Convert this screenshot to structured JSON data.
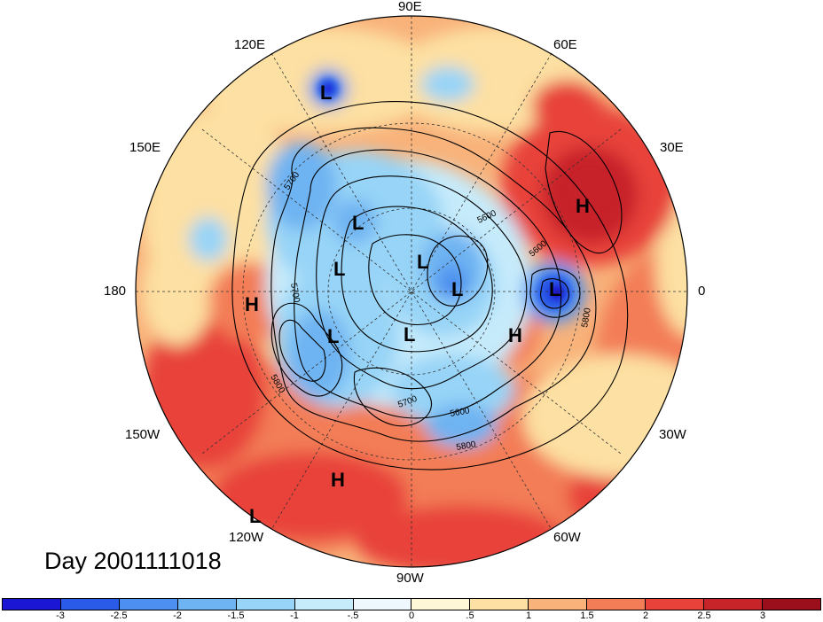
{
  "map": {
    "projection": "north-polar-stereographic",
    "day_label": "Day 2001111018",
    "longitude_labels": {
      "top": "90E",
      "upper_left": "120E",
      "upper_right": "60E",
      "left_upper": "150E",
      "right_upper": "30E",
      "left": "180",
      "right": "0",
      "left_lower": "150W",
      "right_lower": "30W",
      "lower_left": "120W",
      "lower_right": "60W",
      "bottom": "90W"
    },
    "pressure_centers": [
      {
        "label": "L",
        "region": "east-siberia"
      },
      {
        "label": "L",
        "region": "arctic-ocean"
      },
      {
        "label": "L",
        "region": "beaufort-sea"
      },
      {
        "label": "L",
        "region": "north-pole"
      },
      {
        "label": "L",
        "region": "greenland"
      },
      {
        "label": "L",
        "region": "norwegian-sea"
      },
      {
        "label": "L",
        "region": "alaska"
      },
      {
        "label": "L",
        "region": "hudson-bay"
      },
      {
        "label": "L",
        "region": "north-pacific-edge"
      },
      {
        "label": "H",
        "region": "russia"
      },
      {
        "label": "H",
        "region": "north-atlantic"
      },
      {
        "label": "H",
        "region": "dateline"
      },
      {
        "label": "H",
        "region": "eastern-pacific"
      }
    ],
    "contour_labels": [
      "5700",
      "5600",
      "5700",
      "5800",
      "5800",
      "5600",
      "5700",
      "5800",
      "5600"
    ]
  },
  "colorbar": {
    "tick_labels": [
      "-3",
      "-2.5",
      "-2",
      "-1.5",
      "-1",
      "-.5",
      "0",
      ".5",
      "1",
      "1.5",
      "2",
      "2.5",
      "3"
    ],
    "colors": [
      "#1a16d4",
      "#2a5ae8",
      "#4c8ff0",
      "#6eb3f2",
      "#97d4f7",
      "#c6ebfb",
      "#eef8fc",
      "#fdf7d7",
      "#fde0a3",
      "#f8b27a",
      "#f37d57",
      "#e8423a",
      "#c7242a",
      "#9b0f1c"
    ]
  }
}
